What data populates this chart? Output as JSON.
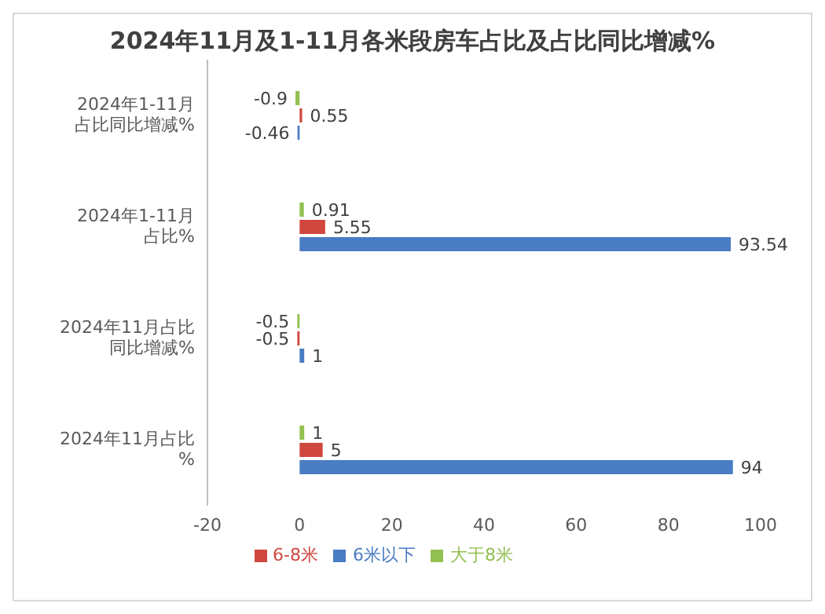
{
  "chart_data": {
    "type": "bar",
    "orientation": "horizontal",
    "title": "2024年11月及1-11月各米段房车占比及占比同比增减%",
    "categories": [
      "2024年1-11月占比同比增减%",
      "2024年1-11月占比%",
      "2024年11月占比同比增减%",
      "2024年11月占比%"
    ],
    "series": [
      {
        "name": "大于8米",
        "color": "#92c051",
        "values": [
          -0.9,
          0.91,
          -0.5,
          1
        ]
      },
      {
        "name": "6-8米",
        "color": "#d0473f",
        "values": [
          0.55,
          5.55,
          -0.5,
          5
        ]
      },
      {
        "name": "6米以下",
        "color": "#4a7cc3",
        "values": [
          -0.46,
          93.54,
          1,
          94
        ]
      }
    ],
    "xlim": [
      -20,
      100
    ],
    "xticks": [
      -20,
      0,
      20,
      40,
      60,
      80,
      100
    ],
    "data_labels": true,
    "legend": "bottom",
    "grid": false
  }
}
